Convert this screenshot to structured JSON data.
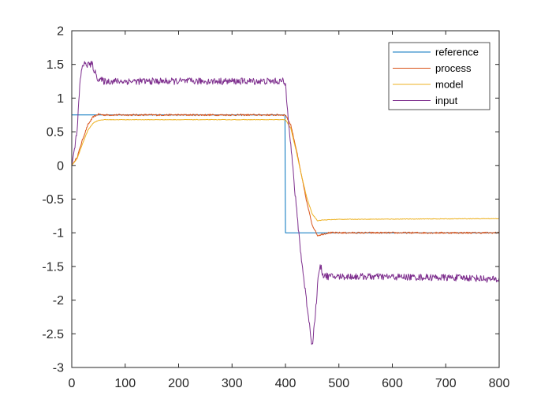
{
  "chart_data": {
    "type": "line",
    "title": "",
    "xlabel": "",
    "ylabel": "",
    "xlim": [
      0,
      800
    ],
    "ylim": [
      -3,
      2
    ],
    "xticks": [
      0,
      100,
      200,
      300,
      400,
      500,
      600,
      700,
      800
    ],
    "yticks": [
      -3,
      -2.5,
      -2,
      -1.5,
      -1,
      -0.5,
      0,
      0.5,
      1,
      1.5,
      2
    ],
    "grid": false,
    "legend_location": "top-right",
    "series": [
      {
        "name": "reference",
        "color": "#0072BD",
        "points": [
          [
            0,
            0.75
          ],
          [
            399,
            0.75
          ],
          [
            400,
            -1
          ],
          [
            800,
            -1
          ]
        ]
      },
      {
        "name": "process",
        "color": "#D95319",
        "points": [
          [
            0,
            0
          ],
          [
            10,
            0.12
          ],
          [
            20,
            0.38
          ],
          [
            30,
            0.6
          ],
          [
            40,
            0.72
          ],
          [
            50,
            0.76
          ],
          [
            60,
            0.75
          ],
          [
            400,
            0.75
          ],
          [
            410,
            0.6
          ],
          [
            420,
            0.25
          ],
          [
            430,
            -0.15
          ],
          [
            440,
            -0.55
          ],
          [
            450,
            -0.88
          ],
          [
            460,
            -1.04
          ],
          [
            470,
            -1.02
          ],
          [
            480,
            -1
          ],
          [
            800,
            -1
          ]
        ]
      },
      {
        "name": "model",
        "color": "#EDB120",
        "points": [
          [
            0,
            0
          ],
          [
            10,
            0.1
          ],
          [
            20,
            0.32
          ],
          [
            30,
            0.52
          ],
          [
            40,
            0.63
          ],
          [
            50,
            0.67
          ],
          [
            60,
            0.68
          ],
          [
            400,
            0.68
          ],
          [
            410,
            0.55
          ],
          [
            420,
            0.22
          ],
          [
            430,
            -0.15
          ],
          [
            440,
            -0.48
          ],
          [
            450,
            -0.72
          ],
          [
            460,
            -0.82
          ],
          [
            470,
            -0.81
          ],
          [
            500,
            -0.8
          ],
          [
            800,
            -0.79
          ]
        ]
      },
      {
        "name": "input",
        "color": "#7E2F8E",
        "points": [
          [
            0,
            0
          ],
          [
            10,
            0.5
          ],
          [
            15,
            1.2
          ],
          [
            20,
            1.5
          ],
          [
            38,
            1.5
          ],
          [
            45,
            1.35
          ],
          [
            50,
            1.28
          ],
          [
            60,
            1.25
          ],
          [
            100,
            1.25
          ],
          [
            200,
            1.25
          ],
          [
            300,
            1.25
          ],
          [
            395,
            1.25
          ],
          [
            400,
            1.2
          ],
          [
            410,
            0.3
          ],
          [
            420,
            -0.6
          ],
          [
            430,
            -1.4
          ],
          [
            440,
            -2.05
          ],
          [
            450,
            -2.68
          ],
          [
            455,
            -2.3
          ],
          [
            462,
            -1.6
          ],
          [
            466,
            -1.5
          ],
          [
            470,
            -1.62
          ],
          [
            480,
            -1.65
          ],
          [
            550,
            -1.65
          ],
          [
            650,
            -1.66
          ],
          [
            750,
            -1.67
          ],
          [
            800,
            -1.7
          ]
        ]
      }
    ]
  }
}
